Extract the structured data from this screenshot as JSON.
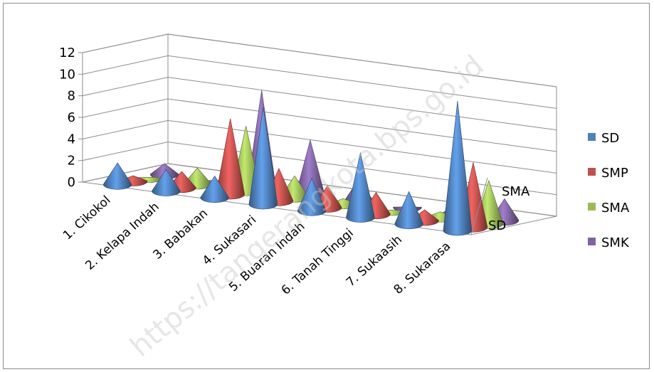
{
  "chart_data": {
    "type": "bar",
    "style": "3d-cone",
    "categories": [
      "1.    Cikokol",
      "2.    Kelapa Indah",
      "3.    Babakan",
      "4.    Sukasari",
      "5.    Buaran Indah",
      "6.    Tanah Tinggi",
      "7.    Sukaasih",
      "8.    Sukarasa"
    ],
    "series": [
      {
        "name": "SD",
        "color": "#4f81bd",
        "values": [
          2,
          2,
          2,
          9,
          3,
          6,
          3,
          12
        ]
      },
      {
        "name": "SMP",
        "color": "#c0504d",
        "values": [
          0.5,
          1.5,
          7,
          3,
          2,
          2,
          1,
          6
        ]
      },
      {
        "name": "SMA",
        "color": "#9bbb59",
        "values": [
          0,
          1.5,
          6,
          2,
          0.5,
          0,
          0.5,
          4
        ]
      },
      {
        "name": "SMK",
        "color": "#8064a2",
        "values": [
          1,
          0,
          9,
          5,
          2,
          0,
          1,
          2
        ]
      }
    ],
    "depth_labels": [
      "SD",
      "SMA"
    ],
    "yticks": [
      0,
      2,
      4,
      6,
      8,
      10,
      12
    ],
    "ylim": [
      0,
      12
    ],
    "grid": true,
    "legend": "right",
    "watermark": "https://tangerangkota.bps.go.id"
  }
}
